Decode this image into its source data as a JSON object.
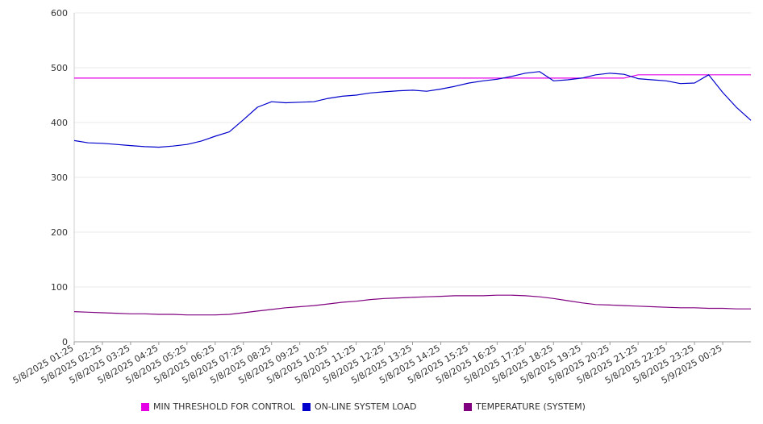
{
  "chart_data": {
    "type": "line",
    "title": "",
    "xlabel": "",
    "ylabel": "",
    "ylim": [
      0,
      600
    ],
    "y_ticks": [
      "0",
      "100",
      "200",
      "300",
      "400",
      "500",
      "600"
    ],
    "grid": true,
    "legend_position": "bottom",
    "x_tick_labels": [
      "5/8/2025 01:25",
      "5/8/2025 02:25",
      "5/8/2025 03:25",
      "5/8/2025 04:25",
      "5/8/2025 05:25",
      "5/8/2025 06:25",
      "5/8/2025 07:25",
      "5/8/2025 08:25",
      "5/8/2025 09:25",
      "5/8/2025 10:25",
      "5/8/2025 11:25",
      "5/8/2025 12:25",
      "5/8/2025 13:25",
      "5/8/2025 14:25",
      "5/8/2025 15:25",
      "5/8/2025 16:25",
      "5/8/2025 17:25",
      "5/8/2025 18:25",
      "5/8/2025 19:25",
      "5/8/2025 20:25",
      "5/8/2025 21:25",
      "5/8/2025 22:25",
      "5/8/2025 23:25",
      "5/9/2025 00:25"
    ],
    "x_hours": [
      0.0,
      0.5,
      1.0,
      1.5,
      2.0,
      2.5,
      3.0,
      3.5,
      4.0,
      4.5,
      5.0,
      5.5,
      6.0,
      6.5,
      7.0,
      7.5,
      8.0,
      8.5,
      9.0,
      9.5,
      10.0,
      10.5,
      11.0,
      11.5,
      12.0,
      12.5,
      13.0,
      13.5,
      14.0,
      14.5,
      15.0,
      15.5,
      16.0,
      16.5,
      17.0,
      17.5,
      18.0,
      18.5,
      19.0,
      19.5,
      20.0,
      20.5,
      21.0,
      21.5,
      22.0,
      22.5,
      23.0,
      23.5,
      24.0
    ],
    "series": [
      {
        "name": "MIN THRESHOLD FOR CONTROL",
        "color": "#e600e6",
        "values": [
          481,
          481,
          481,
          481,
          481,
          481,
          481,
          481,
          481,
          481,
          481,
          481,
          481,
          481,
          481,
          481,
          481,
          481,
          481,
          481,
          481,
          481,
          481,
          481,
          481,
          481,
          481,
          481,
          481,
          481,
          481,
          481,
          481,
          481,
          481,
          481,
          481,
          481,
          481,
          481,
          487,
          487,
          487,
          487,
          487,
          487,
          487,
          487,
          487
        ]
      },
      {
        "name": "ON-LINE SYSTEM LOAD",
        "color": "#0000cc",
        "values": [
          367,
          363,
          362,
          360,
          358,
          356,
          355,
          357,
          360,
          366,
          375,
          383,
          405,
          428,
          438,
          436,
          437,
          438,
          444,
          448,
          450,
          454,
          456,
          458,
          459,
          457,
          461,
          466,
          472,
          476,
          479,
          484,
          490,
          493,
          476,
          478,
          481,
          487,
          490,
          488,
          480,
          478,
          476,
          471,
          472,
          487,
          455,
          427,
          404
        ]
      },
      {
        "name": "TEMPERATURE (SYSTEM)",
        "color": "#800080",
        "values": [
          55,
          54,
          53,
          52,
          51,
          51,
          50,
          50,
          49,
          49,
          49,
          50,
          53,
          56,
          59,
          62,
          64,
          66,
          69,
          72,
          74,
          77,
          79,
          80,
          81,
          82,
          83,
          84,
          84,
          84,
          85,
          85,
          84,
          82,
          79,
          75,
          71,
          68,
          67,
          66,
          65,
          64,
          63,
          62,
          62,
          61,
          61,
          60,
          60
        ]
      }
    ]
  }
}
